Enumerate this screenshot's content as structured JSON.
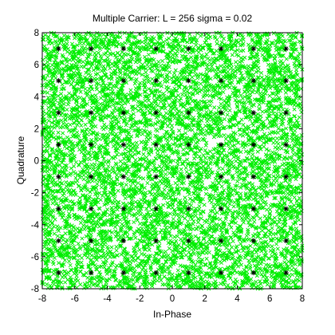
{
  "chart_data": {
    "type": "scatter",
    "title": "Multiple Carrier: L = 256 sigma = 0.02",
    "xlabel": "In-Phase",
    "ylabel": "Quadrature",
    "xlim": [
      -8,
      8
    ],
    "ylim": [
      -8,
      8
    ],
    "xticks": [
      -8,
      -6,
      -4,
      -2,
      0,
      2,
      4,
      6,
      8
    ],
    "yticks": [
      -8,
      -6,
      -4,
      -2,
      0,
      2,
      4,
      6,
      8
    ],
    "grid": false,
    "legend": "none",
    "series": [
      {
        "marker": "x",
        "color": "#00ee00",
        "distribution": "uniform-dense",
        "range": [
          -8,
          8
        ]
      },
      {
        "marker": "asterisk",
        "color": "#000000",
        "x": [
          -7,
          -5,
          -3,
          -1,
          1,
          3,
          5,
          7,
          -7,
          -5,
          -3,
          -1,
          1,
          3,
          5,
          7,
          -7,
          -5,
          -3,
          -1,
          1,
          3,
          5,
          7,
          -7,
          -5,
          -3,
          -1,
          1,
          3,
          5,
          7,
          -7,
          -5,
          -3,
          -1,
          1,
          3,
          5,
          7,
          -7,
          -5,
          -3,
          -1,
          1,
          3,
          5,
          7,
          -7,
          -5,
          -3,
          -1,
          1,
          3,
          5,
          7,
          -7,
          -5,
          -3,
          -1,
          1,
          3,
          5,
          7
        ],
        "y": [
          7,
          7,
          7,
          7,
          7,
          7,
          7,
          7,
          5,
          5,
          5,
          5,
          5,
          5,
          5,
          5,
          3,
          3,
          3,
          3,
          3,
          3,
          3,
          3,
          1,
          1,
          1,
          1,
          1,
          1,
          1,
          1,
          -1,
          -1,
          -1,
          -1,
          -1,
          -1,
          -1,
          -1,
          -3,
          -3,
          -3,
          -3,
          -3,
          -3,
          -3,
          -3,
          -5,
          -5,
          -5,
          -5,
          -5,
          -5,
          -5,
          -5,
          -7,
          -7,
          -7,
          -7,
          -7,
          -7,
          -7,
          -7
        ]
      }
    ]
  }
}
